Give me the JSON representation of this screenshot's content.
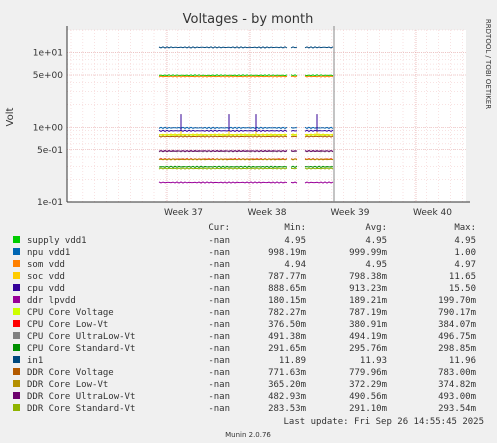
{
  "chart_data": {
    "type": "line",
    "title": "Voltages - by month",
    "ylabel": "Volt",
    "yscale": "log",
    "ylim": [
      0.1,
      20
    ],
    "y_ticks": [
      "1e+01",
      "5e+00",
      "1e+00",
      "5e-01",
      "1e-01"
    ],
    "x_ticks": [
      "Week 37",
      "Week 38",
      "Week 39",
      "Week 40"
    ],
    "grid": true,
    "side_label": "RRDTOOL / TOBI OETIKER",
    "footer": "Munin 2.0.76",
    "table_headers": {
      "cur": "Cur:",
      "min": "Min:",
      "avg": "Avg:",
      "max": "Max:"
    },
    "last_update": "Last update: Fri Sep 26 14:55:45 2025",
    "series": [
      {
        "name": "supply vdd1",
        "color": "#00cc00",
        "cur": "-nan",
        "min": "4.95",
        "avg": "4.95",
        "max": "4.95"
      },
      {
        "name": "npu vdd1",
        "color": "#0066b3",
        "cur": "-nan",
        "min": "998.19m",
        "avg": "999.99m",
        "max": "1.00"
      },
      {
        "name": "som vdd",
        "color": "#ff8000",
        "cur": "-nan",
        "min": "4.94",
        "avg": "4.95",
        "max": "4.97"
      },
      {
        "name": "soc vdd",
        "color": "#ffcc00",
        "cur": "-nan",
        "min": "787.77m",
        "avg": "798.38m",
        "max": "11.65"
      },
      {
        "name": "cpu vdd",
        "color": "#330099",
        "cur": "-nan",
        "min": "888.65m",
        "avg": "913.23m",
        "max": "15.50"
      },
      {
        "name": "ddr lpvdd",
        "color": "#990099",
        "cur": "-nan",
        "min": "180.15m",
        "avg": "189.21m",
        "max": "199.70m"
      },
      {
        "name": "CPU Core Voltage",
        "color": "#ccff00",
        "cur": "-nan",
        "min": "782.27m",
        "avg": "787.19m",
        "max": "790.17m"
      },
      {
        "name": "CPU Core Low-Vt",
        "color": "#ff0000",
        "cur": "-nan",
        "min": "376.50m",
        "avg": "380.91m",
        "max": "384.07m"
      },
      {
        "name": "CPU Core UltraLow-Vt",
        "color": "#808080",
        "cur": "-nan",
        "min": "491.38m",
        "avg": "494.19m",
        "max": "496.75m"
      },
      {
        "name": "CPU Core Standard-Vt",
        "color": "#008f00",
        "cur": "-nan",
        "min": "291.65m",
        "avg": "295.76m",
        "max": "298.85m"
      },
      {
        "name": "in1",
        "color": "#00487d",
        "cur": "-nan",
        "min": "11.89",
        "avg": "11.93",
        "max": "11.96"
      },
      {
        "name": "DDR Core Voltage",
        "color": "#b35a00",
        "cur": "-nan",
        "min": "771.63m",
        "avg": "779.96m",
        "max": "783.00m"
      },
      {
        "name": "DDR Core Low-Vt",
        "color": "#b38f00",
        "cur": "-nan",
        "min": "365.20m",
        "avg": "372.29m",
        "max": "374.82m"
      },
      {
        "name": "DDR Core UltraLow-Vt",
        "color": "#6b006b",
        "cur": "-nan",
        "min": "482.93m",
        "avg": "490.56m",
        "max": "493.00m"
      },
      {
        "name": "DDR Core Standard-Vt",
        "color": "#8fb300",
        "cur": "-nan",
        "min": "283.53m",
        "avg": "291.10m",
        "max": "293.54m"
      }
    ]
  }
}
